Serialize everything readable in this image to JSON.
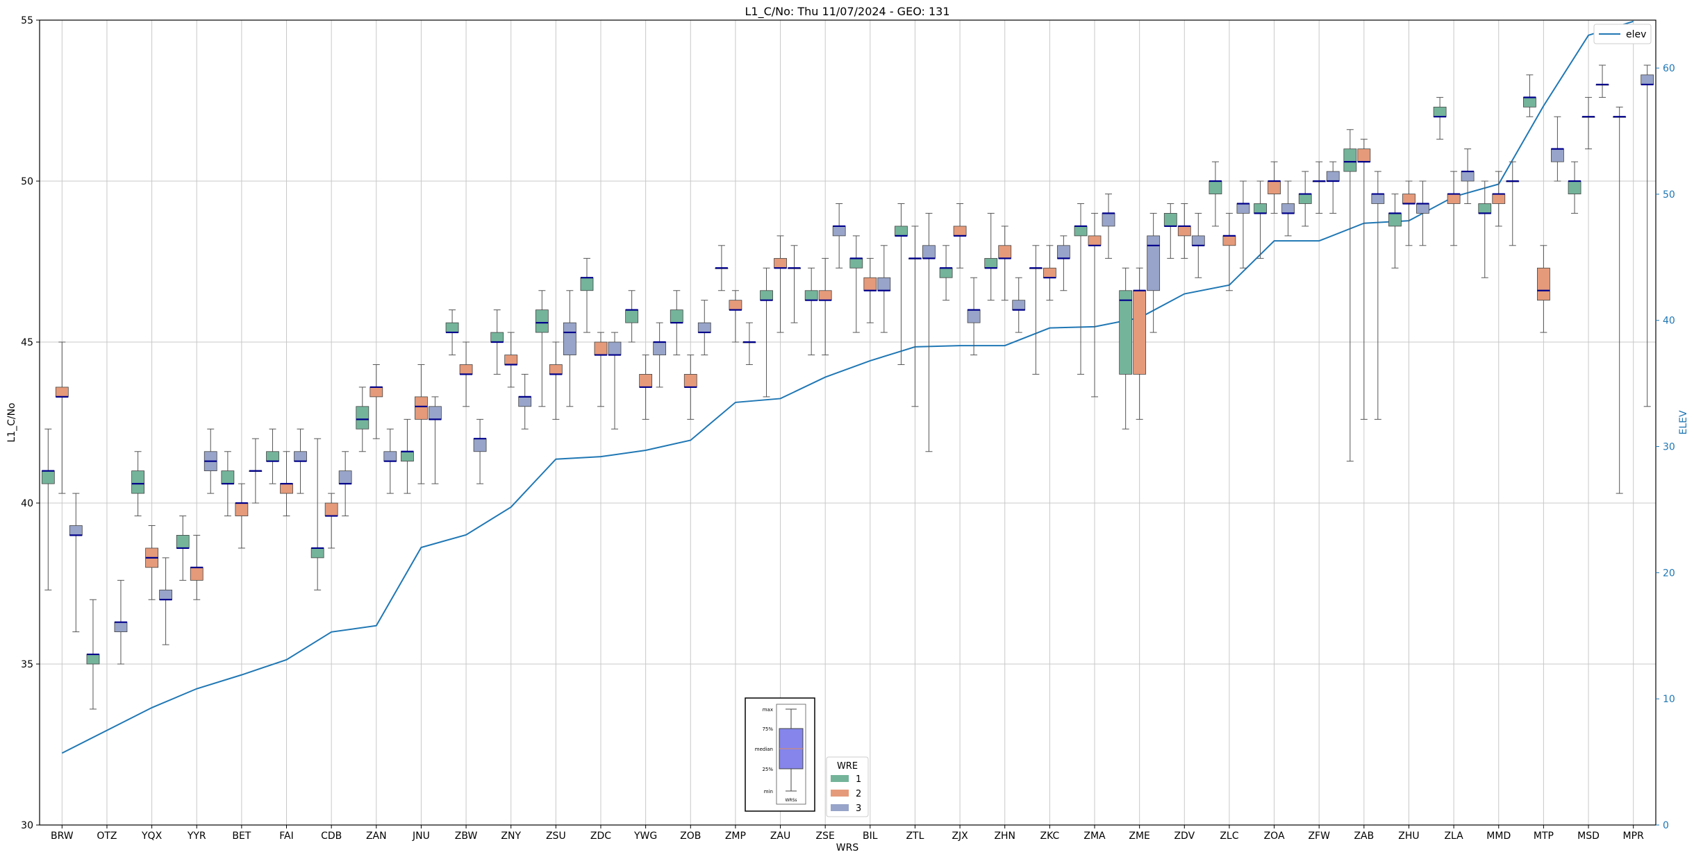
{
  "chart_data": {
    "type": "box",
    "title": "L1_C/No: Thu 11/07/2024 - GEO: 131",
    "xlabel": "WRS",
    "ylabel": "L1_C/No",
    "y2label": "ELEV",
    "ylim": [
      30,
      55
    ],
    "y2lim": [
      0,
      63.8
    ],
    "yticks": [
      30,
      35,
      40,
      45,
      50,
      55
    ],
    "y2ticks": [
      0,
      10,
      20,
      30,
      40,
      50,
      60
    ],
    "grid": true,
    "categories": [
      "BRW",
      "OTZ",
      "YQX",
      "YYR",
      "BET",
      "FAI",
      "CDB",
      "ZAN",
      "JNU",
      "ZBW",
      "ZNY",
      "ZSU",
      "ZDC",
      "YWG",
      "ZOB",
      "ZMP",
      "ZAU",
      "ZSE",
      "BIL",
      "ZTL",
      "ZJX",
      "ZHN",
      "ZKC",
      "ZMA",
      "ZME",
      "ZDV",
      "ZLC",
      "ZOA",
      "ZFW",
      "ZAB",
      "ZHU",
      "ZLA",
      "MMD",
      "MTP",
      "MSD",
      "MPR"
    ],
    "wre_colors": {
      "1": "#74b49b",
      "2": "#e59a7a",
      "3": "#98a4c9"
    },
    "median_color": "#00008b",
    "elev_color": "#1f77b4",
    "boxes": [
      {
        "site": "BRW",
        "wre": 1,
        "min": 37.3,
        "q1": 40.6,
        "median": 41.0,
        "q3": 41.0,
        "max": 42.3
      },
      {
        "site": "BRW",
        "wre": 2,
        "min": 40.3,
        "q1": 43.3,
        "median": 43.3,
        "q3": 43.6,
        "max": 45.0
      },
      {
        "site": "BRW",
        "wre": 3,
        "min": 36.0,
        "q1": 39.0,
        "median": 39.0,
        "q3": 39.3,
        "max": 40.3
      },
      {
        "site": "OTZ",
        "wre": 1,
        "min": 33.6,
        "q1": 35.0,
        "median": 35.3,
        "q3": 35.3,
        "max": 37.0
      },
      {
        "site": "OTZ",
        "wre": 3,
        "min": 35.0,
        "q1": 36.0,
        "median": 36.3,
        "q3": 36.3,
        "max": 37.6
      },
      {
        "site": "YQX",
        "wre": 1,
        "min": 39.6,
        "q1": 40.3,
        "median": 40.6,
        "q3": 41.0,
        "max": 41.6
      },
      {
        "site": "YQX",
        "wre": 2,
        "min": 37.0,
        "q1": 38.0,
        "median": 38.3,
        "q3": 38.6,
        "max": 39.3
      },
      {
        "site": "YQX",
        "wre": 3,
        "min": 35.6,
        "q1": 37.0,
        "median": 37.0,
        "q3": 37.3,
        "max": 38.3
      },
      {
        "site": "YYR",
        "wre": 1,
        "min": 37.6,
        "q1": 38.6,
        "median": 38.6,
        "q3": 39.0,
        "max": 39.6
      },
      {
        "site": "YYR",
        "wre": 2,
        "min": 37.0,
        "q1": 37.6,
        "median": 38.0,
        "q3": 38.0,
        "max": 39.0
      },
      {
        "site": "YYR",
        "wre": 3,
        "min": 40.3,
        "q1": 41.0,
        "median": 41.3,
        "q3": 41.6,
        "max": 42.3
      },
      {
        "site": "BET",
        "wre": 1,
        "min": 39.6,
        "q1": 40.6,
        "median": 40.6,
        "q3": 41.0,
        "max": 41.6
      },
      {
        "site": "BET",
        "wre": 2,
        "min": 38.6,
        "q1": 39.6,
        "median": 40.0,
        "q3": 40.0,
        "max": 40.6
      },
      {
        "site": "BET",
        "wre": 3,
        "min": 40.0,
        "q1": 41.0,
        "median": 41.0,
        "q3": 41.0,
        "max": 42.0
      },
      {
        "site": "FAI",
        "wre": 1,
        "min": 40.6,
        "q1": 41.3,
        "median": 41.3,
        "q3": 41.6,
        "max": 42.3
      },
      {
        "site": "FAI",
        "wre": 2,
        "min": 39.6,
        "q1": 40.3,
        "median": 40.6,
        "q3": 40.6,
        "max": 41.6
      },
      {
        "site": "FAI",
        "wre": 3,
        "min": 40.3,
        "q1": 41.3,
        "median": 41.3,
        "q3": 41.6,
        "max": 42.3
      },
      {
        "site": "CDB",
        "wre": 1,
        "min": 37.3,
        "q1": 38.3,
        "median": 38.6,
        "q3": 38.6,
        "max": 42.0
      },
      {
        "site": "CDB",
        "wre": 2,
        "min": 38.6,
        "q1": 39.6,
        "median": 39.6,
        "q3": 40.0,
        "max": 40.3
      },
      {
        "site": "CDB",
        "wre": 3,
        "min": 39.6,
        "q1": 40.6,
        "median": 40.6,
        "q3": 41.0,
        "max": 41.6
      },
      {
        "site": "ZAN",
        "wre": 1,
        "min": 41.6,
        "q1": 42.3,
        "median": 42.6,
        "q3": 43.0,
        "max": 43.6
      },
      {
        "site": "ZAN",
        "wre": 2,
        "min": 42.0,
        "q1": 43.3,
        "median": 43.6,
        "q3": 43.6,
        "max": 44.3
      },
      {
        "site": "ZAN",
        "wre": 3,
        "min": 40.3,
        "q1": 41.3,
        "median": 41.3,
        "q3": 41.6,
        "max": 42.3
      },
      {
        "site": "JNU",
        "wre": 1,
        "min": 40.3,
        "q1": 41.3,
        "median": 41.6,
        "q3": 41.6,
        "max": 42.6
      },
      {
        "site": "JNU",
        "wre": 2,
        "min": 40.6,
        "q1": 42.6,
        "median": 43.0,
        "q3": 43.3,
        "max": 44.3
      },
      {
        "site": "JNU",
        "wre": 3,
        "min": 40.6,
        "q1": 42.6,
        "median": 42.6,
        "q3": 43.0,
        "max": 43.3
      },
      {
        "site": "ZBW",
        "wre": 1,
        "min": 44.6,
        "q1": 45.3,
        "median": 45.3,
        "q3": 45.6,
        "max": 46.0
      },
      {
        "site": "ZBW",
        "wre": 2,
        "min": 43.0,
        "q1": 44.0,
        "median": 44.0,
        "q3": 44.3,
        "max": 45.0
      },
      {
        "site": "ZBW",
        "wre": 3,
        "min": 40.6,
        "q1": 41.6,
        "median": 42.0,
        "q3": 42.0,
        "max": 42.6
      },
      {
        "site": "ZNY",
        "wre": 1,
        "min": 44.0,
        "q1": 45.0,
        "median": 45.0,
        "q3": 45.3,
        "max": 46.0
      },
      {
        "site": "ZNY",
        "wre": 2,
        "min": 43.6,
        "q1": 44.3,
        "median": 44.3,
        "q3": 44.6,
        "max": 45.3
      },
      {
        "site": "ZNY",
        "wre": 3,
        "min": 42.3,
        "q1": 43.0,
        "median": 43.3,
        "q3": 43.3,
        "max": 44.0
      },
      {
        "site": "ZSU",
        "wre": 1,
        "min": 43.0,
        "q1": 45.3,
        "median": 45.6,
        "q3": 46.0,
        "max": 46.6
      },
      {
        "site": "ZSU",
        "wre": 2,
        "min": 42.6,
        "q1": 44.0,
        "median": 44.0,
        "q3": 44.3,
        "max": 45.0
      },
      {
        "site": "ZSU",
        "wre": 3,
        "min": 43.0,
        "q1": 44.6,
        "median": 45.3,
        "q3": 45.6,
        "max": 46.6
      },
      {
        "site": "ZDC",
        "wre": 1,
        "min": 45.3,
        "q1": 46.6,
        "median": 47.0,
        "q3": 47.0,
        "max": 47.6
      },
      {
        "site": "ZDC",
        "wre": 2,
        "min": 43.0,
        "q1": 44.6,
        "median": 44.6,
        "q3": 45.0,
        "max": 45.3
      },
      {
        "site": "ZDC",
        "wre": 3,
        "min": 42.3,
        "q1": 44.6,
        "median": 44.6,
        "q3": 45.0,
        "max": 45.3
      },
      {
        "site": "YWG",
        "wre": 1,
        "min": 45.0,
        "q1": 45.6,
        "median": 46.0,
        "q3": 46.0,
        "max": 46.6
      },
      {
        "site": "YWG",
        "wre": 2,
        "min": 42.6,
        "q1": 43.6,
        "median": 43.6,
        "q3": 44.0,
        "max": 44.6
      },
      {
        "site": "YWG",
        "wre": 3,
        "min": 43.6,
        "q1": 44.6,
        "median": 45.0,
        "q3": 45.0,
        "max": 45.6
      },
      {
        "site": "ZOB",
        "wre": 1,
        "min": 44.6,
        "q1": 45.6,
        "median": 45.6,
        "q3": 46.0,
        "max": 46.6
      },
      {
        "site": "ZOB",
        "wre": 2,
        "min": 42.6,
        "q1": 43.6,
        "median": 43.6,
        "q3": 44.0,
        "max": 44.6
      },
      {
        "site": "ZOB",
        "wre": 3,
        "min": 44.6,
        "q1": 45.3,
        "median": 45.3,
        "q3": 45.6,
        "max": 46.3
      },
      {
        "site": "ZMP",
        "wre": 1,
        "min": 46.6,
        "q1": 47.3,
        "median": 47.3,
        "q3": 47.3,
        "max": 48.0
      },
      {
        "site": "ZMP",
        "wre": 2,
        "min": 45.0,
        "q1": 46.0,
        "median": 46.0,
        "q3": 46.3,
        "max": 46.6
      },
      {
        "site": "ZMP",
        "wre": 3,
        "min": 44.3,
        "q1": 45.0,
        "median": 45.0,
        "q3": 45.0,
        "max": 45.6
      },
      {
        "site": "ZAU",
        "wre": 1,
        "min": 43.3,
        "q1": 46.3,
        "median": 46.3,
        "q3": 46.6,
        "max": 47.3
      },
      {
        "site": "ZAU",
        "wre": 2,
        "min": 45.3,
        "q1": 47.3,
        "median": 47.3,
        "q3": 47.6,
        "max": 48.3
      },
      {
        "site": "ZAU",
        "wre": 3,
        "min": 45.6,
        "q1": 47.3,
        "median": 47.3,
        "q3": 47.3,
        "max": 48.0
      },
      {
        "site": "ZSE",
        "wre": 1,
        "min": 44.6,
        "q1": 46.3,
        "median": 46.3,
        "q3": 46.6,
        "max": 47.3
      },
      {
        "site": "ZSE",
        "wre": 2,
        "min": 44.6,
        "q1": 46.3,
        "median": 46.3,
        "q3": 46.6,
        "max": 47.6
      },
      {
        "site": "ZSE",
        "wre": 3,
        "min": 47.3,
        "q1": 48.3,
        "median": 48.6,
        "q3": 48.6,
        "max": 49.3
      },
      {
        "site": "BIL",
        "wre": 1,
        "min": 45.3,
        "q1": 47.3,
        "median": 47.6,
        "q3": 47.6,
        "max": 48.3
      },
      {
        "site": "BIL",
        "wre": 2,
        "min": 45.6,
        "q1": 46.6,
        "median": 46.6,
        "q3": 47.0,
        "max": 47.6
      },
      {
        "site": "BIL",
        "wre": 3,
        "min": 45.3,
        "q1": 46.6,
        "median": 46.6,
        "q3": 47.0,
        "max": 48.0
      },
      {
        "site": "ZTL",
        "wre": 1,
        "min": 44.3,
        "q1": 48.3,
        "median": 48.3,
        "q3": 48.6,
        "max": 49.3
      },
      {
        "site": "ZTL",
        "wre": 2,
        "min": 43.0,
        "q1": 47.6,
        "median": 47.6,
        "q3": 47.6,
        "max": 48.6
      },
      {
        "site": "ZTL",
        "wre": 3,
        "min": 41.6,
        "q1": 47.6,
        "median": 47.6,
        "q3": 48.0,
        "max": 49.0
      },
      {
        "site": "ZJX",
        "wre": 1,
        "min": 46.3,
        "q1": 47.0,
        "median": 47.3,
        "q3": 47.3,
        "max": 48.0
      },
      {
        "site": "ZJX",
        "wre": 2,
        "min": 47.3,
        "q1": 48.3,
        "median": 48.3,
        "q3": 48.6,
        "max": 49.3
      },
      {
        "site": "ZJX",
        "wre": 3,
        "min": 44.6,
        "q1": 45.6,
        "median": 46.0,
        "q3": 46.0,
        "max": 47.0
      },
      {
        "site": "ZHN",
        "wre": 1,
        "min": 46.3,
        "q1": 47.3,
        "median": 47.3,
        "q3": 47.6,
        "max": 49.0
      },
      {
        "site": "ZHN",
        "wre": 2,
        "min": 46.3,
        "q1": 47.6,
        "median": 47.6,
        "q3": 48.0,
        "max": 48.6
      },
      {
        "site": "ZHN",
        "wre": 3,
        "min": 45.3,
        "q1": 46.0,
        "median": 46.0,
        "q3": 46.3,
        "max": 47.0
      },
      {
        "site": "ZKC",
        "wre": 1,
        "min": 44.0,
        "q1": 47.3,
        "median": 47.3,
        "q3": 47.3,
        "max": 48.0
      },
      {
        "site": "ZKC",
        "wre": 2,
        "min": 46.3,
        "q1": 47.0,
        "median": 47.0,
        "q3": 47.3,
        "max": 48.0
      },
      {
        "site": "ZKC",
        "wre": 3,
        "min": 46.6,
        "q1": 47.6,
        "median": 47.6,
        "q3": 48.0,
        "max": 48.3
      },
      {
        "site": "ZMA",
        "wre": 1,
        "min": 44.0,
        "q1": 48.3,
        "median": 48.6,
        "q3": 48.6,
        "max": 49.3
      },
      {
        "site": "ZMA",
        "wre": 2,
        "min": 43.3,
        "q1": 48.0,
        "median": 48.0,
        "q3": 48.3,
        "max": 49.0
      },
      {
        "site": "ZMA",
        "wre": 3,
        "min": 47.6,
        "q1": 48.6,
        "median": 49.0,
        "q3": 49.0,
        "max": 49.6
      },
      {
        "site": "ZME",
        "wre": 1,
        "min": 42.3,
        "q1": 44.0,
        "median": 46.3,
        "q3": 46.6,
        "max": 47.3
      },
      {
        "site": "ZME",
        "wre": 2,
        "min": 42.6,
        "q1": 44.0,
        "median": 46.6,
        "q3": 46.6,
        "max": 47.3
      },
      {
        "site": "ZME",
        "wre": 3,
        "min": 45.3,
        "q1": 46.6,
        "median": 48.0,
        "q3": 48.3,
        "max": 49.0
      },
      {
        "site": "ZDV",
        "wre": 1,
        "min": 47.6,
        "q1": 48.6,
        "median": 48.6,
        "q3": 49.0,
        "max": 49.3
      },
      {
        "site": "ZDV",
        "wre": 2,
        "min": 47.6,
        "q1": 48.3,
        "median": 48.6,
        "q3": 48.6,
        "max": 49.3
      },
      {
        "site": "ZDV",
        "wre": 3,
        "min": 47.0,
        "q1": 48.0,
        "median": 48.0,
        "q3": 48.3,
        "max": 49.0
      },
      {
        "site": "ZLC",
        "wre": 1,
        "min": 48.6,
        "q1": 49.6,
        "median": 50.0,
        "q3": 50.0,
        "max": 50.6
      },
      {
        "site": "ZLC",
        "wre": 2,
        "min": 46.6,
        "q1": 48.0,
        "median": 48.3,
        "q3": 48.3,
        "max": 49.0
      },
      {
        "site": "ZLC",
        "wre": 3,
        "min": 47.3,
        "q1": 49.0,
        "median": 49.3,
        "q3": 49.3,
        "max": 50.0
      },
      {
        "site": "ZOA",
        "wre": 1,
        "min": 47.6,
        "q1": 49.0,
        "median": 49.0,
        "q3": 49.3,
        "max": 50.0
      },
      {
        "site": "ZOA",
        "wre": 2,
        "min": 49.0,
        "q1": 49.6,
        "median": 50.0,
        "q3": 50.0,
        "max": 50.6
      },
      {
        "site": "ZOA",
        "wre": 3,
        "min": 48.3,
        "q1": 49.0,
        "median": 49.0,
        "q3": 49.3,
        "max": 50.0
      },
      {
        "site": "ZFW",
        "wre": 1,
        "min": 48.6,
        "q1": 49.3,
        "median": 49.6,
        "q3": 49.6,
        "max": 50.3
      },
      {
        "site": "ZFW",
        "wre": 2,
        "min": 49.0,
        "q1": 50.0,
        "median": 50.0,
        "q3": 50.0,
        "max": 50.6
      },
      {
        "site": "ZFW",
        "wre": 3,
        "min": 49.0,
        "q1": 50.0,
        "median": 50.0,
        "q3": 50.3,
        "max": 50.6
      },
      {
        "site": "ZAB",
        "wre": 1,
        "min": 41.3,
        "q1": 50.3,
        "median": 50.6,
        "q3": 51.0,
        "max": 51.6
      },
      {
        "site": "ZAB",
        "wre": 2,
        "min": 42.6,
        "q1": 50.6,
        "median": 50.6,
        "q3": 51.0,
        "max": 51.3
      },
      {
        "site": "ZAB",
        "wre": 3,
        "min": 42.6,
        "q1": 49.3,
        "median": 49.6,
        "q3": 49.6,
        "max": 50.3
      },
      {
        "site": "ZHU",
        "wre": 1,
        "min": 47.3,
        "q1": 48.6,
        "median": 49.0,
        "q3": 49.0,
        "max": 49.6
      },
      {
        "site": "ZHU",
        "wre": 2,
        "min": 48.0,
        "q1": 49.3,
        "median": 49.3,
        "q3": 49.6,
        "max": 50.0
      },
      {
        "site": "ZHU",
        "wre": 3,
        "min": 48.0,
        "q1": 49.0,
        "median": 49.3,
        "q3": 49.3,
        "max": 50.0
      },
      {
        "site": "ZLA",
        "wre": 1,
        "min": 51.3,
        "q1": 52.0,
        "median": 52.0,
        "q3": 52.3,
        "max": 52.6
      },
      {
        "site": "ZLA",
        "wre": 2,
        "min": 48.0,
        "q1": 49.3,
        "median": 49.6,
        "q3": 49.6,
        "max": 50.3
      },
      {
        "site": "ZLA",
        "wre": 3,
        "min": 49.3,
        "q1": 50.0,
        "median": 50.3,
        "q3": 50.3,
        "max": 51.0
      },
      {
        "site": "MMD",
        "wre": 1,
        "min": 47.0,
        "q1": 49.0,
        "median": 49.0,
        "q3": 49.3,
        "max": 50.0
      },
      {
        "site": "MMD",
        "wre": 2,
        "min": 48.6,
        "q1": 49.3,
        "median": 49.6,
        "q3": 49.6,
        "max": 50.3
      },
      {
        "site": "MMD",
        "wre": 3,
        "min": 48.0,
        "q1": 50.0,
        "median": 50.0,
        "q3": 50.0,
        "max": 50.6
      },
      {
        "site": "MTP",
        "wre": 1,
        "min": 52.0,
        "q1": 52.3,
        "median": 52.6,
        "q3": 52.6,
        "max": 53.3
      },
      {
        "site": "MTP",
        "wre": 2,
        "min": 45.3,
        "q1": 46.3,
        "median": 46.6,
        "q3": 47.3,
        "max": 48.0
      },
      {
        "site": "MTP",
        "wre": 3,
        "min": 50.0,
        "q1": 50.6,
        "median": 51.0,
        "q3": 51.0,
        "max": 52.0
      },
      {
        "site": "MSD",
        "wre": 1,
        "min": 49.0,
        "q1": 49.6,
        "median": 50.0,
        "q3": 50.0,
        "max": 50.6
      },
      {
        "site": "MSD",
        "wre": 2,
        "min": 51.0,
        "q1": 52.0,
        "median": 52.0,
        "q3": 52.0,
        "max": 52.6
      },
      {
        "site": "MSD",
        "wre": 3,
        "min": 52.6,
        "q1": 53.0,
        "median": 53.0,
        "q3": 53.0,
        "max": 53.6
      },
      {
        "site": "MPR",
        "wre": 1,
        "min": 40.3,
        "q1": 52.0,
        "median": 52.0,
        "q3": 52.0,
        "max": 52.3
      },
      {
        "site": "MPR",
        "wre": 3,
        "min": 43.0,
        "q1": 53.0,
        "median": 53.0,
        "q3": 53.3,
        "max": 53.6
      }
    ],
    "elev_series": {
      "name": "elev",
      "values": [
        5.7,
        7.5,
        9.3,
        10.8,
        11.9,
        13.1,
        15.3,
        15.8,
        22.0,
        23.0,
        25.2,
        29.0,
        29.2,
        29.7,
        30.5,
        33.5,
        33.8,
        35.5,
        36.8,
        37.9,
        38.0,
        38.0,
        39.4,
        39.5,
        40.2,
        42.1,
        42.8,
        46.3,
        46.3,
        47.7,
        47.9,
        49.8,
        50.8,
        57.0,
        62.6,
        63.7
      ]
    },
    "legend_elev": {
      "position": "top-right",
      "label": "elev"
    },
    "legend_wre": {
      "position": "bottom-center",
      "title": "WRE",
      "entries": [
        "1",
        "2",
        "3"
      ]
    },
    "inset_key": {
      "position": "bottom-center",
      "labels": [
        "max",
        "75%",
        "median",
        "25%",
        "min"
      ],
      "caption": "WRSs"
    }
  }
}
